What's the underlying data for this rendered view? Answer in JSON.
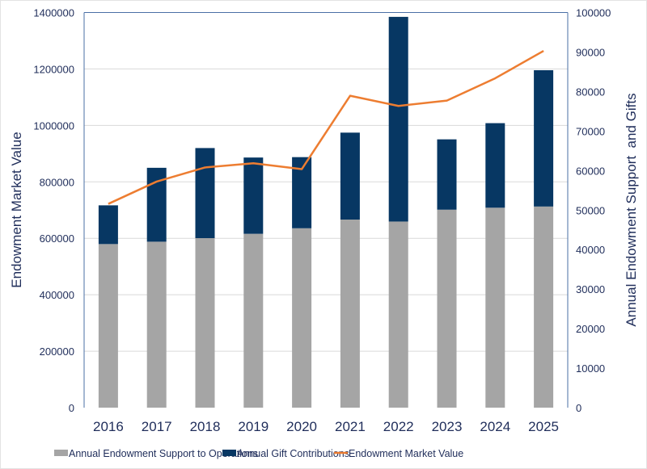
{
  "chart_data": {
    "type": "bar",
    "subtype": "stacked bar with line on secondary axis",
    "title": "",
    "categories": [
      "2016",
      "2017",
      "2018",
      "2019",
      "2020",
      "2021",
      "2022",
      "2023",
      "2024",
      "2025"
    ],
    "series": [
      {
        "name": "Annual Endowment Support to Operations",
        "type": "bar",
        "axis": "right",
        "color": "#a5a5a5",
        "values": [
          41400,
          42000,
          42900,
          44000,
          45400,
          47600,
          47100,
          50100,
          50600,
          50900
        ]
      },
      {
        "name": "Annual Gift Contributions",
        "type": "bar",
        "axis": "right",
        "color": "#073763",
        "values": [
          9800,
          18700,
          22800,
          19300,
          18000,
          22000,
          51800,
          17800,
          21400,
          34500
        ]
      },
      {
        "name": "Endowment Market Value",
        "type": "line",
        "axis": "left",
        "color": "#ed7d31",
        "values": [
          722000,
          801000,
          851000,
          866000,
          845000,
          1105000,
          1069000,
          1088000,
          1167000,
          1264000
        ]
      }
    ],
    "ylabel": "Endowment Market Value",
    "ylim": [
      0,
      1400000
    ],
    "yticks": [
      "0",
      "200000",
      "400000",
      "600000",
      "800000",
      "1000000",
      "1200000",
      "1400000"
    ],
    "y2label": "Annual Endowment Support  and Gifts",
    "y2lim": [
      0,
      100000
    ],
    "y2ticks": [
      "0",
      "10000",
      "20000",
      "30000",
      "40000",
      "50000",
      "60000",
      "70000",
      "80000",
      "90000",
      "100000"
    ],
    "grid": true,
    "legend": "bottom",
    "colors": {
      "axis": "#4a6fa5",
      "text": "#1f2d5a",
      "grid": "#d9d9d9"
    }
  }
}
